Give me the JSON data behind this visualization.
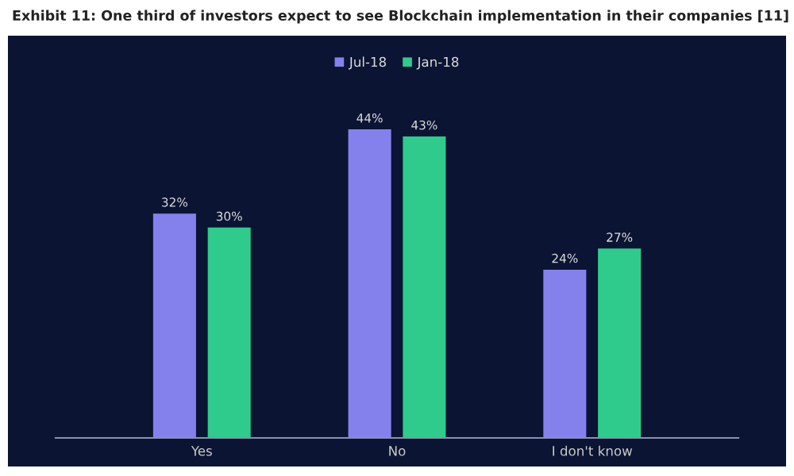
{
  "chart_data": {
    "type": "bar",
    "title": "Exhibit 11: One third of investors expect to see Blockchain implementation in their companies [11]",
    "categories": [
      "Yes",
      "No",
      "I don't know"
    ],
    "series": [
      {
        "name": "Jul-18",
        "color": "#8581ec",
        "values": [
          32,
          44,
          24
        ],
        "value_labels": [
          "32%",
          "44%",
          "24%"
        ]
      },
      {
        "name": "Jan-18",
        "color": "#2fcb8c",
        "values": [
          30,
          43,
          27
        ],
        "value_labels": [
          "30%",
          "43%",
          "27%"
        ]
      }
    ],
    "legend": "top",
    "grid": false
  }
}
